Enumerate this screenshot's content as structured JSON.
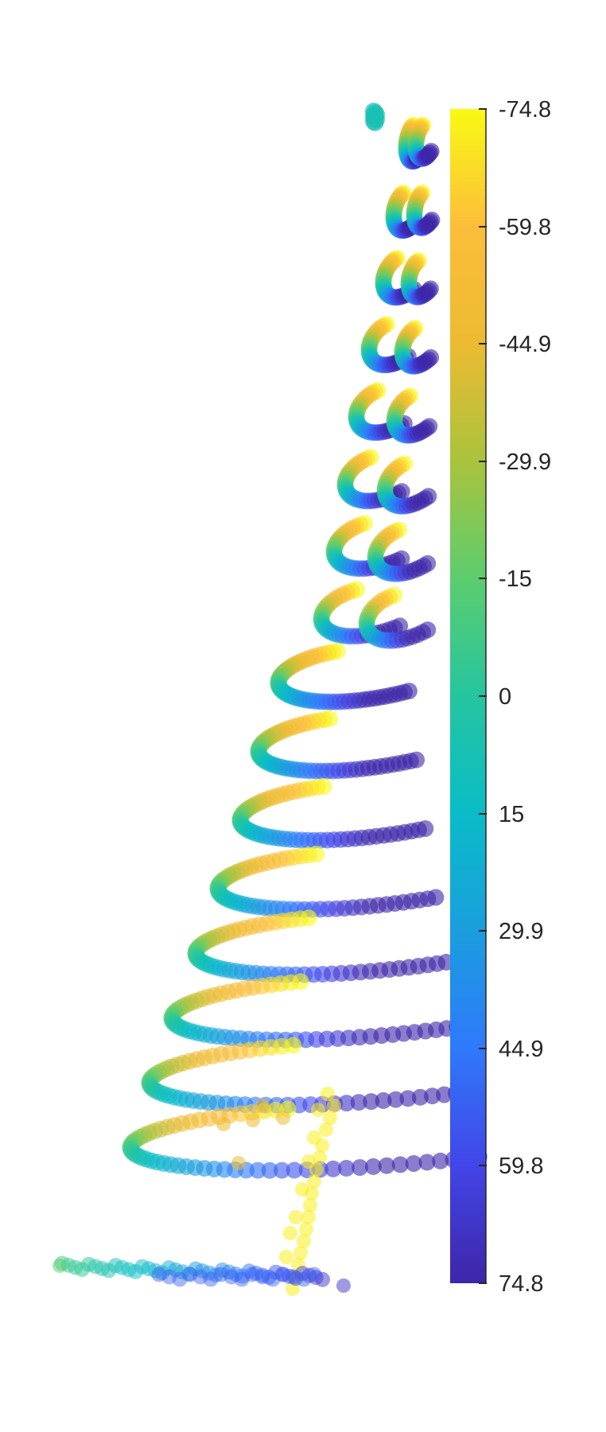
{
  "chart_data": {
    "type": "scatter",
    "description_axes": "no visible axes; colored 3D-like scatter of points forming helical trajectories",
    "colormap": "parula",
    "colorbar": {
      "orientation": "vertical",
      "position": "right",
      "limits": [
        -74.8,
        74.8
      ],
      "reversed": true,
      "tick_values": [
        -74.8,
        -59.8,
        -44.9,
        -29.9,
        -15,
        0,
        15,
        29.9,
        44.9,
        59.8,
        74.8
      ],
      "tick_labels": [
        "-74.8",
        "-59.8",
        "-44.9",
        "-29.9",
        "-15",
        "0",
        "15",
        "29.9",
        "44.9",
        "59.8",
        "74.8"
      ]
    },
    "colors": [
      "#3e26a8",
      "#4245e8",
      "#2f79fb",
      "#1a9ede",
      "#0abcc8",
      "#25c59f",
      "#5ccd6e",
      "#aac33d",
      "#ecbb32",
      "#fcbe3a",
      "#f9fa14"
    ],
    "point_alpha": 0.55,
    "grid": false,
    "legend": "none"
  }
}
